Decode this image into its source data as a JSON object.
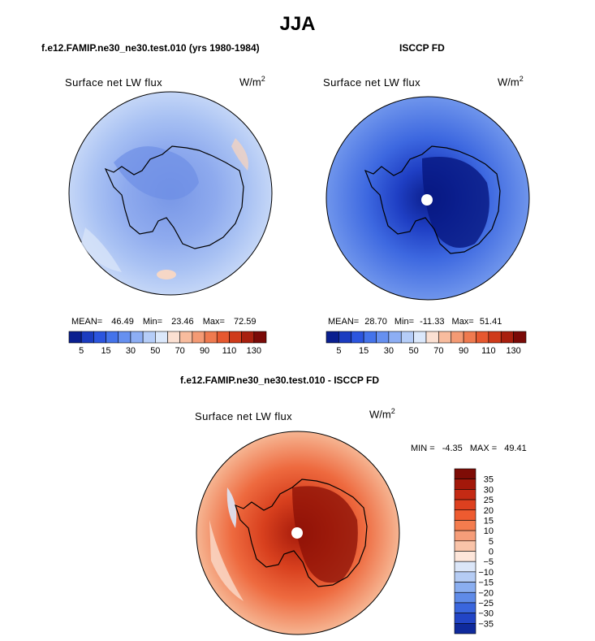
{
  "chart_data": [
    {
      "type": "heatmap",
      "projection": "south-polar-stereographic",
      "title": "f.e12.FAMIP.ne30_ne30.test.010 (yrs 1980-1984)",
      "left_label": "Surface net LW flux",
      "units": "W/m",
      "units_exp": "2",
      "stats": {
        "mean_label": "MEAN=",
        "mean": "46.49",
        "min_label": "Min=",
        "min": "23.46",
        "max_label": "Max=",
        "max": "72.59"
      },
      "colorbar": {
        "levels": [
          "5",
          "15",
          "30",
          "50",
          "70",
          "90",
          "110",
          "130"
        ],
        "colors": [
          "#0a1f8f",
          "#1b3cc0",
          "#2c55de",
          "#4473ea",
          "#6690f0",
          "#8daef4",
          "#b5cdf8",
          "#dbe8fb",
          "#fbe0d2",
          "#f8bc9e",
          "#f49a74",
          "#ef7a4f",
          "#e6582f",
          "#cf3b1b",
          "#a8200f",
          "#7a0a07"
        ]
      }
    },
    {
      "type": "heatmap",
      "projection": "south-polar-stereographic",
      "title": "ISCCP FD",
      "left_label": "Surface net LW flux",
      "units": "W/m",
      "units_exp": "2",
      "stats": {
        "mean_label": "MEAN=",
        "mean": "28.70",
        "min_label": "Min=",
        "min": "-11.33",
        "max_label": "Max=",
        "max": "51.41"
      },
      "colorbar": {
        "levels": [
          "5",
          "15",
          "30",
          "50",
          "70",
          "90",
          "110",
          "130"
        ]
      }
    },
    {
      "type": "heatmap",
      "projection": "south-polar-stereographic",
      "title": "f.e12.FAMIP.ne30_ne30.test.010 - ISCCP FD",
      "left_label": "Surface net LW flux",
      "units": "W/m",
      "units_exp": "2",
      "stats": {
        "min_label": "MIN =",
        "min": "-4.35",
        "max_label": "MAX =",
        "max": "49.41"
      },
      "colorbar": {
        "levels": [
          "35",
          "30",
          "25",
          "20",
          "15",
          "10",
          "5",
          "0",
          "−5",
          "−10",
          "−15",
          "−20",
          "−25",
          "−30",
          "−35"
        ],
        "colors": [
          "#7e0c06",
          "#a3180a",
          "#c42a14",
          "#dd401f",
          "#ee5b30",
          "#f47c4e",
          "#f69d79",
          "#f9c3a8",
          "#fde6da",
          "#dbe6f8",
          "#b5ccf4",
          "#8aaef0",
          "#5f8be8",
          "#3a66dd",
          "#2245c6",
          "#0f2a9c"
        ]
      }
    }
  ],
  "page": {
    "title": "JJA"
  }
}
